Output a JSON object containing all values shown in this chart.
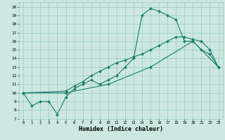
{
  "title": "",
  "xlabel": "Humidex (Indice chaleur)",
  "bg_color": "#cce8e0",
  "grid_color": "#99ccc0",
  "line_color": "#1a7a6a",
  "markersize": 2,
  "xlim": [
    -0.5,
    23.5
  ],
  "ylim": [
    7,
    20.5
  ],
  "xticks": [
    0,
    1,
    2,
    3,
    4,
    5,
    6,
    7,
    8,
    9,
    10,
    11,
    12,
    13,
    14,
    15,
    16,
    17,
    18,
    19,
    20,
    21,
    22,
    23
  ],
  "yticks": [
    7,
    8,
    9,
    10,
    11,
    12,
    13,
    14,
    15,
    16,
    17,
    18,
    19,
    20
  ],
  "line1_x": [
    0,
    1,
    2,
    3,
    4,
    5,
    6,
    7,
    8,
    9,
    10,
    11,
    12,
    13,
    14,
    15,
    16,
    17,
    18,
    19,
    20,
    21,
    22,
    23
  ],
  "line1_y": [
    10,
    8.5,
    9,
    9,
    7.5,
    9.5,
    10.5,
    11,
    11.5,
    11,
    11.5,
    12,
    13,
    14,
    19,
    19.8,
    19.5,
    19,
    18.5,
    16,
    16,
    15,
    14.5,
    13
  ],
  "line2_x": [
    0,
    5,
    6,
    7,
    8,
    9,
    10,
    11,
    12,
    13,
    14,
    15,
    16,
    17,
    18,
    19,
    20,
    21,
    22,
    23
  ],
  "line2_y": [
    10,
    10.2,
    10.8,
    11.3,
    12.0,
    12.5,
    13.0,
    13.5,
    13.8,
    14.2,
    14.5,
    15.0,
    15.5,
    16.0,
    16.5,
    16.5,
    16.2,
    16.0,
    15.0,
    13.0
  ],
  "line3_x": [
    0,
    5,
    10,
    15,
    20,
    23
  ],
  "line3_y": [
    10,
    10.0,
    11.0,
    13.0,
    16.0,
    13.0
  ]
}
